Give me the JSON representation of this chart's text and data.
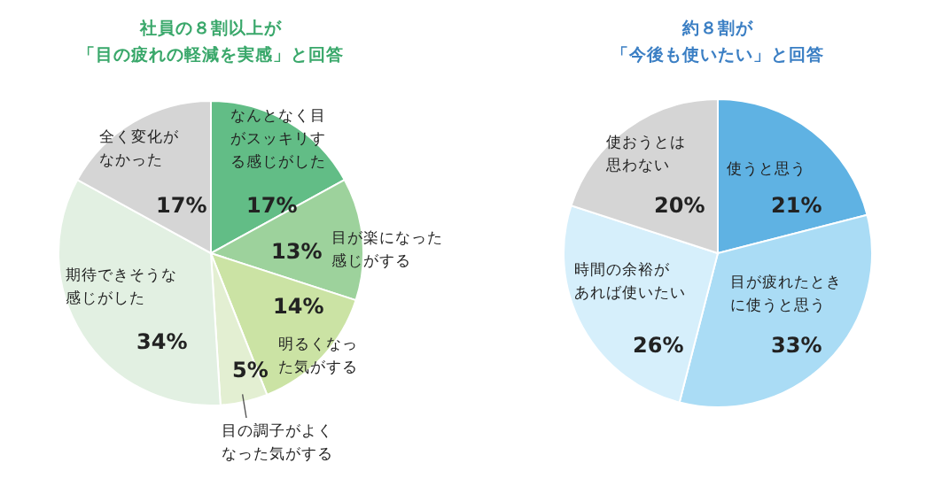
{
  "chart_data": [
    {
      "type": "pie",
      "title": "社員の８割以上が「目の疲れの軽減を実感」と回答",
      "categories": [
        "なんとなく目がスッキリする感じがした",
        "目が楽になった感じがする",
        "明るくなった気がする",
        "目の調子がよくなった気がする",
        "期待できそうな感じがした",
        "全く変化がなかった"
      ],
      "values": [
        17,
        13,
        14,
        5,
        34,
        17
      ],
      "value_labels": [
        "17%",
        "13%",
        "14%",
        "5%",
        "34%",
        "17%"
      ],
      "colors": [
        "#62bd86",
        "#9dd29c",
        "#cbe3a4",
        "#e3efd2",
        "#e2f0e2",
        "#d5d5d5"
      ]
    },
    {
      "type": "pie",
      "title": "約８割が「今後も使いたい」と回答",
      "categories": [
        "使うと思う",
        "目が疲れたときに使うと思う",
        "時間の余裕があれば使いたい",
        "使おうとは思わない"
      ],
      "values": [
        21,
        33,
        26,
        20
      ],
      "value_labels": [
        "21%",
        "33%",
        "26%",
        "20%"
      ],
      "colors": [
        "#5fb2e3",
        "#aadcf5",
        "#d6effb",
        "#d5d5d5"
      ]
    }
  ]
}
